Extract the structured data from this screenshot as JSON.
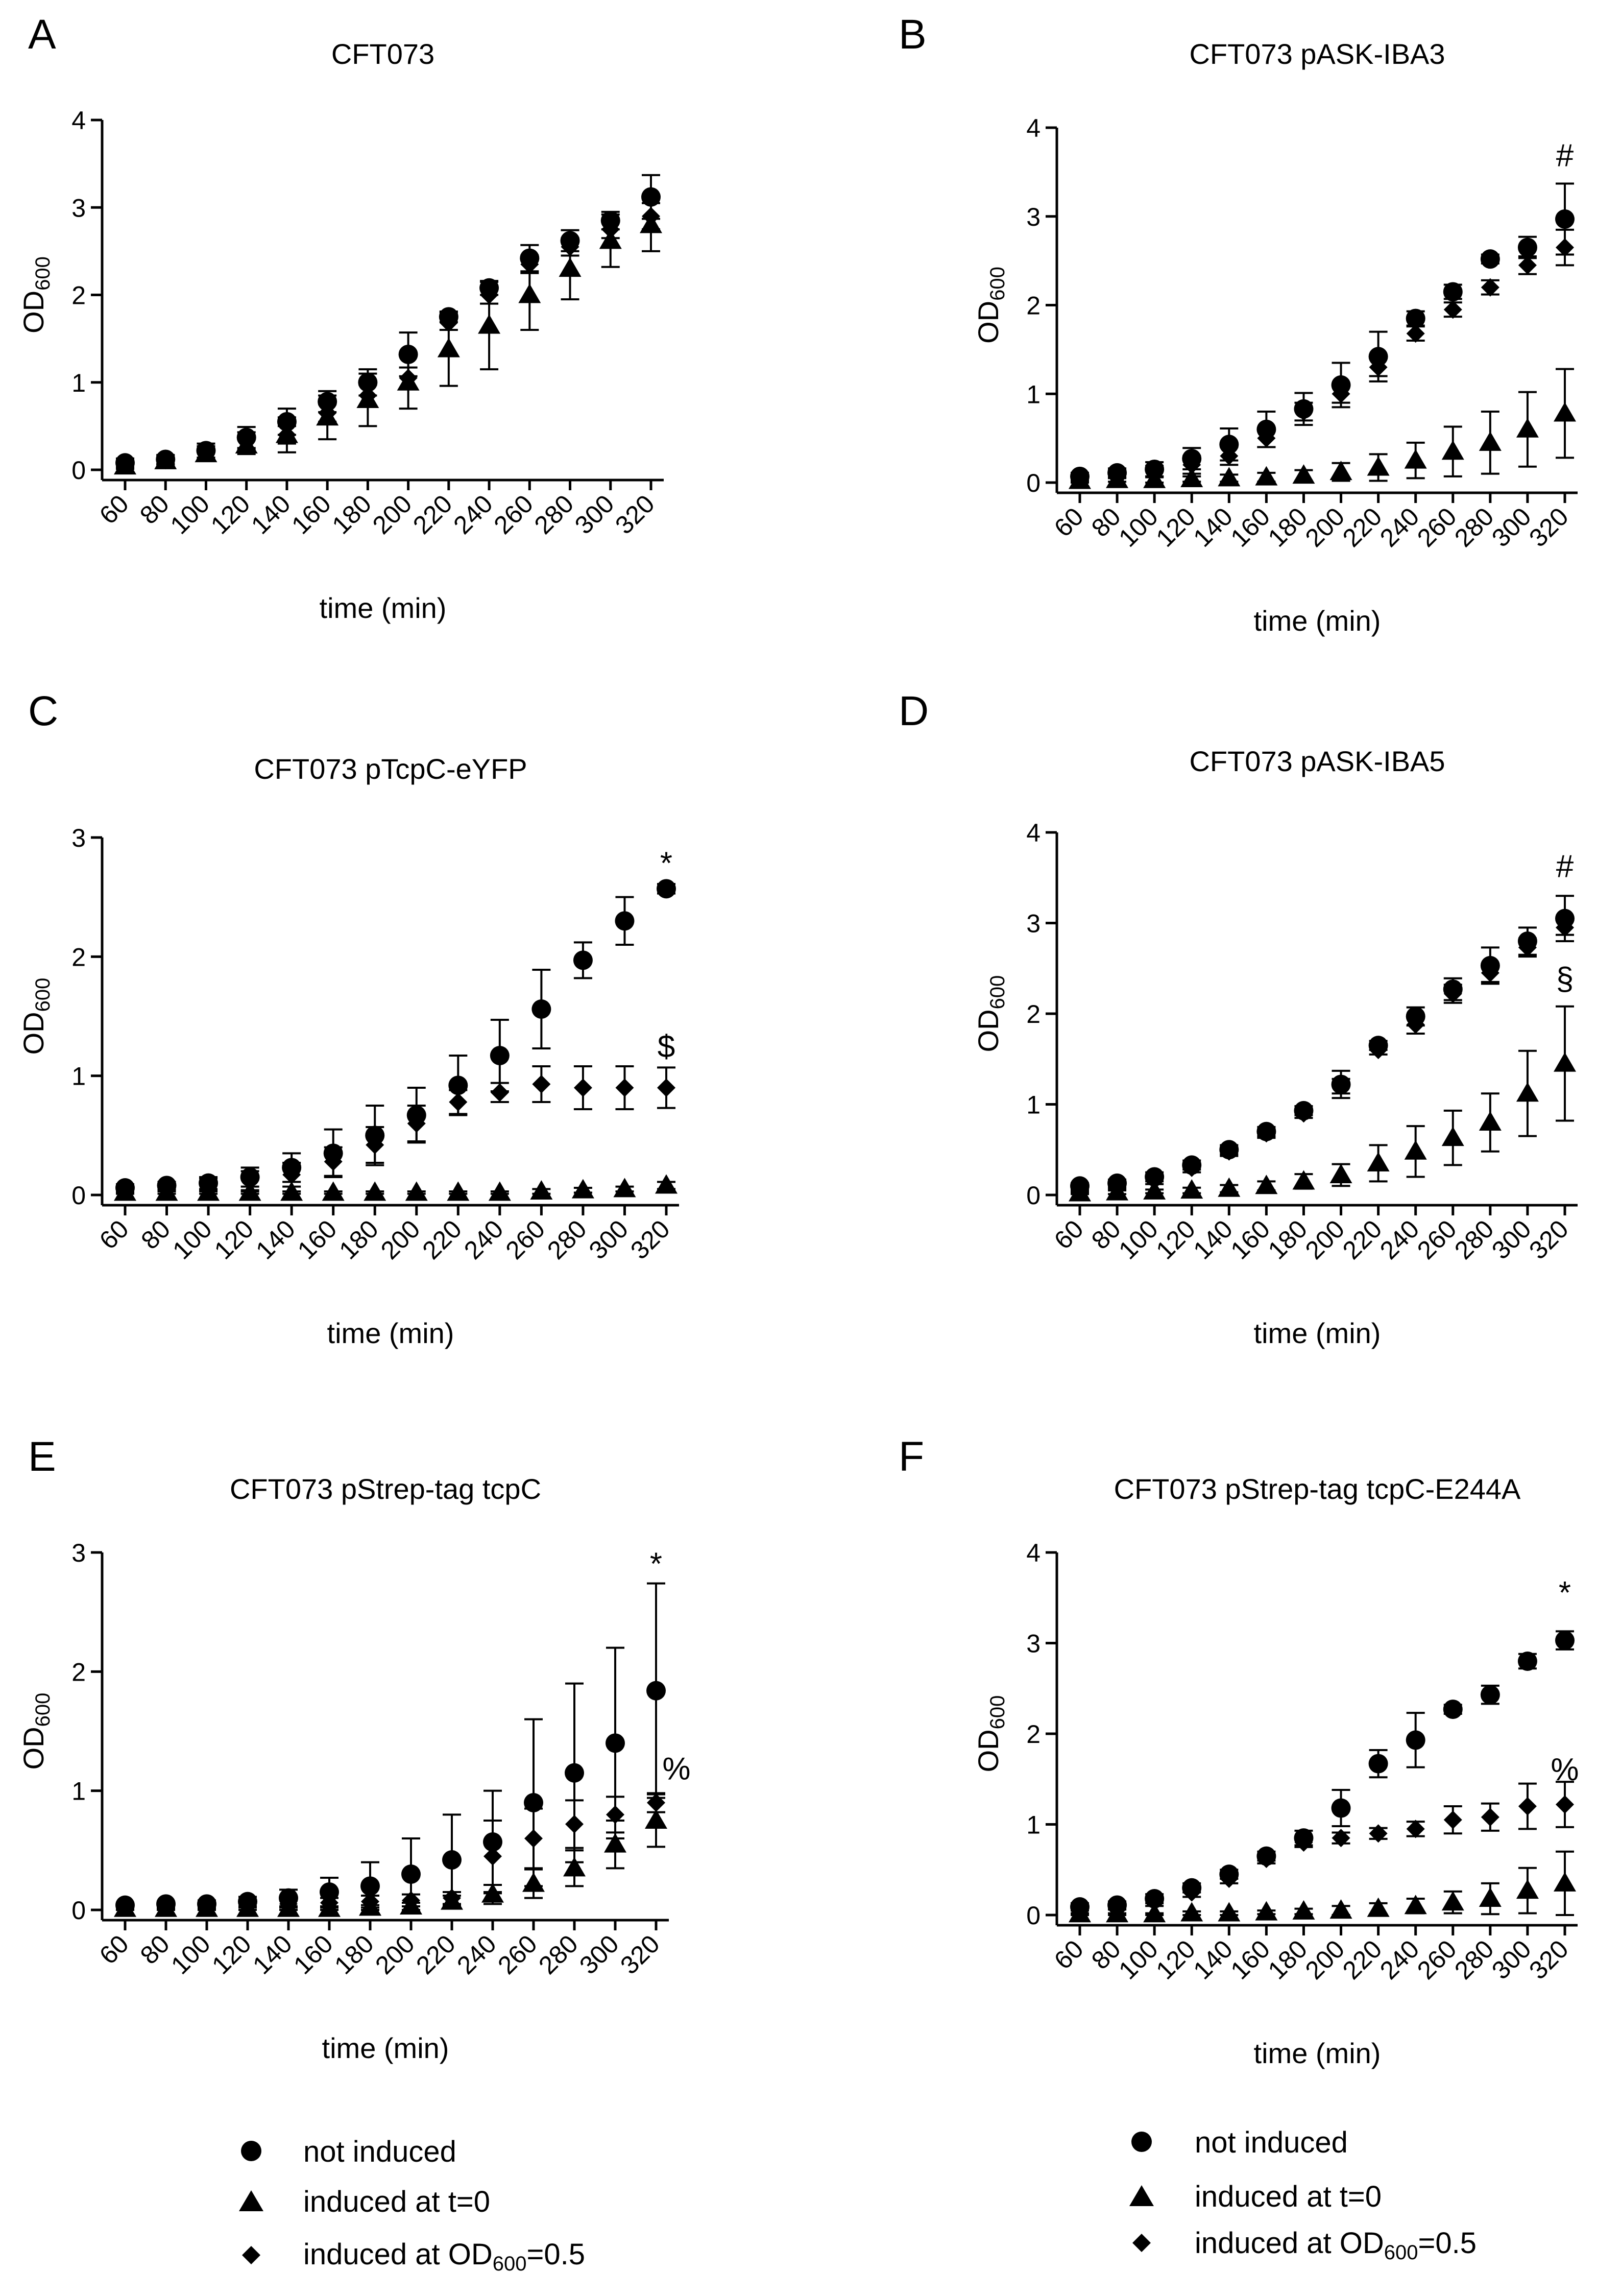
{
  "chart_data": [
    {
      "panel": "A",
      "type": "scatter",
      "title": "CFT073",
      "xlabel": "time (min)",
      "ylabel": "OD",
      "ylabel_sub": "600",
      "x": [
        60,
        80,
        100,
        120,
        140,
        160,
        180,
        200,
        220,
        240,
        260,
        280,
        300,
        320
      ],
      "ylim": [
        0,
        4
      ],
      "yticks": [
        0,
        1,
        2,
        3,
        4
      ],
      "series": [
        {
          "name": "not induced",
          "marker": "circle",
          "values": [
            0.08,
            0.12,
            0.22,
            0.37,
            0.55,
            0.78,
            1.0,
            1.32,
            1.75,
            2.08,
            2.42,
            2.62,
            2.85,
            3.12
          ],
          "errors": [
            0.05,
            0.05,
            0.08,
            0.12,
            0.15,
            0.12,
            0.15,
            0.25,
            0.06,
            0.08,
            0.15,
            0.12,
            0.1,
            0.25
          ]
        },
        {
          "name": "induced at t=0",
          "marker": "triangle",
          "values": [
            0.04,
            0.1,
            0.18,
            0.28,
            0.4,
            0.6,
            0.8,
            1.0,
            1.38,
            1.65,
            2.0,
            2.3,
            2.62,
            2.8
          ],
          "errors": [
            0.03,
            0.04,
            0.06,
            0.1,
            0.2,
            0.25,
            0.3,
            0.3,
            0.42,
            0.5,
            0.4,
            0.35,
            0.3,
            0.3
          ]
        },
        {
          "name": "induced at OD600=0.5",
          "marker": "diamond",
          "values": [
            0.07,
            0.11,
            0.2,
            0.33,
            0.4,
            0.65,
            0.85,
            1.05,
            1.68,
            2.0,
            2.35,
            2.55,
            2.75,
            2.9
          ],
          "errors": [
            0.04,
            0.05,
            0.07,
            0.1,
            0.1,
            0.1,
            0.12,
            0.12,
            0.08,
            0.1,
            0.1,
            0.1,
            0.1,
            0.15
          ]
        }
      ],
      "annotations": []
    },
    {
      "panel": "B",
      "type": "scatter",
      "title": "CFT073 pASK-IBA3",
      "xlabel": "time (min)",
      "ylabel": "OD",
      "ylabel_sub": "600",
      "x": [
        60,
        80,
        100,
        120,
        140,
        160,
        180,
        200,
        220,
        240,
        260,
        280,
        300,
        320
      ],
      "ylim": [
        0,
        4
      ],
      "yticks": [
        0,
        1,
        2,
        3,
        4
      ],
      "series": [
        {
          "name": "not induced",
          "marker": "circle",
          "values": [
            0.07,
            0.11,
            0.15,
            0.27,
            0.43,
            0.6,
            0.83,
            1.1,
            1.42,
            1.85,
            2.15,
            2.52,
            2.65,
            2.97
          ],
          "errors": [
            0.04,
            0.05,
            0.08,
            0.12,
            0.18,
            0.2,
            0.18,
            0.25,
            0.28,
            0.08,
            0.08,
            0.05,
            0.12,
            0.4
          ]
        },
        {
          "name": "induced at t=0",
          "marker": "triangle",
          "values": [
            0.02,
            0.03,
            0.03,
            0.04,
            0.05,
            0.06,
            0.08,
            0.12,
            0.17,
            0.25,
            0.35,
            0.45,
            0.6,
            0.78
          ],
          "errors": [
            0.02,
            0.02,
            0.03,
            0.03,
            0.04,
            0.05,
            0.06,
            0.1,
            0.15,
            0.2,
            0.28,
            0.35,
            0.42,
            0.5
          ]
        },
        {
          "name": "induced at OD600=0.5",
          "marker": "diamond",
          "values": [
            0.06,
            0.1,
            0.13,
            0.2,
            0.3,
            0.5,
            0.8,
            1.0,
            1.3,
            1.68,
            1.95,
            2.2,
            2.45,
            2.65
          ],
          "errors": [
            0.04,
            0.04,
            0.06,
            0.1,
            0.1,
            0.1,
            0.1,
            0.1,
            0.1,
            0.08,
            0.08,
            0.08,
            0.1,
            0.2
          ]
        }
      ],
      "annotations": [
        {
          "text": "#",
          "x": 320,
          "y": 3.68
        }
      ]
    },
    {
      "panel": "C",
      "type": "scatter",
      "title": "CFT073 pTcpC-eYFP",
      "xlabel": "time (min)",
      "ylabel": "OD",
      "ylabel_sub": "600",
      "x": [
        60,
        80,
        100,
        120,
        140,
        160,
        180,
        200,
        220,
        240,
        260,
        280,
        300,
        320
      ],
      "ylim": [
        0,
        3
      ],
      "yticks": [
        0,
        1,
        2,
        3
      ],
      "series": [
        {
          "name": "not induced",
          "marker": "circle",
          "values": [
            0.06,
            0.08,
            0.1,
            0.15,
            0.23,
            0.35,
            0.5,
            0.67,
            0.92,
            1.17,
            1.56,
            1.97,
            2.3,
            2.57
          ],
          "errors": [
            0.03,
            0.03,
            0.05,
            0.08,
            0.12,
            0.2,
            0.25,
            0.23,
            0.25,
            0.3,
            0.33,
            0.15,
            0.2,
            0.04
          ]
        },
        {
          "name": "induced at t=0",
          "marker": "triangle",
          "values": [
            0.02,
            0.02,
            0.02,
            0.02,
            0.02,
            0.02,
            0.02,
            0.02,
            0.02,
            0.02,
            0.03,
            0.04,
            0.05,
            0.08
          ],
          "errors": [
            0.01,
            0.01,
            0.01,
            0.01,
            0.01,
            0.01,
            0.01,
            0.01,
            0.01,
            0.01,
            0.02,
            0.02,
            0.02,
            0.03
          ]
        },
        {
          "name": "induced at OD600=0.5",
          "marker": "diamond",
          "values": [
            0.05,
            0.07,
            0.09,
            0.12,
            0.17,
            0.28,
            0.42,
            0.6,
            0.78,
            0.86,
            0.93,
            0.9,
            0.9,
            0.9
          ],
          "errors": [
            0.03,
            0.03,
            0.05,
            0.08,
            0.1,
            0.12,
            0.15,
            0.15,
            0.1,
            0.08,
            0.15,
            0.18,
            0.18,
            0.17
          ]
        }
      ],
      "annotations": [
        {
          "text": "*",
          "x": 320,
          "y": 2.78
        },
        {
          "text": "$",
          "x": 320,
          "y": 1.24
        }
      ]
    },
    {
      "panel": "D",
      "type": "scatter",
      "title": "CFT073 pASK-IBA5",
      "xlabel": "time (min)",
      "ylabel": "OD",
      "ylabel_sub": "600",
      "x": [
        60,
        80,
        100,
        120,
        140,
        160,
        180,
        200,
        220,
        240,
        260,
        280,
        300,
        320
      ],
      "ylim": [
        0,
        4
      ],
      "yticks": [
        0,
        1,
        2,
        3,
        4
      ],
      "series": [
        {
          "name": "not induced",
          "marker": "circle",
          "values": [
            0.1,
            0.13,
            0.2,
            0.33,
            0.5,
            0.7,
            0.93,
            1.22,
            1.65,
            1.97,
            2.27,
            2.53,
            2.8,
            3.05
          ],
          "errors": [
            0.03,
            0.04,
            0.05,
            0.05,
            0.05,
            0.05,
            0.05,
            0.15,
            0.05,
            0.1,
            0.12,
            0.2,
            0.15,
            0.25
          ]
        },
        {
          "name": "induced at t=0",
          "marker": "triangle",
          "values": [
            0.02,
            0.03,
            0.04,
            0.05,
            0.07,
            0.1,
            0.15,
            0.22,
            0.35,
            0.48,
            0.63,
            0.8,
            1.12,
            1.45
          ],
          "errors": [
            0.01,
            0.02,
            0.02,
            0.03,
            0.04,
            0.05,
            0.08,
            0.12,
            0.2,
            0.28,
            0.3,
            0.32,
            0.47,
            0.63
          ]
        },
        {
          "name": "induced at OD600=0.5",
          "marker": "diamond",
          "values": [
            0.08,
            0.11,
            0.17,
            0.3,
            0.48,
            0.68,
            0.9,
            1.2,
            1.6,
            1.88,
            2.22,
            2.45,
            2.73,
            2.95
          ],
          "errors": [
            0.03,
            0.04,
            0.05,
            0.05,
            0.05,
            0.05,
            0.05,
            0.08,
            0.05,
            0.1,
            0.1,
            0.1,
            0.1,
            0.08
          ]
        }
      ],
      "annotations": [
        {
          "text": "#",
          "x": 320,
          "y": 3.62
        },
        {
          "text": "§",
          "x": 320,
          "y": 2.38
        }
      ]
    },
    {
      "panel": "E",
      "type": "scatter",
      "title": "CFT073 pStrep-tag tcpC",
      "xlabel": "time (min)",
      "ylabel": "OD",
      "ylabel_sub": "600",
      "x": [
        60,
        80,
        100,
        120,
        140,
        160,
        180,
        200,
        220,
        240,
        260,
        280,
        300,
        320
      ],
      "ylim": [
        0,
        3
      ],
      "yticks": [
        0,
        1,
        2,
        3
      ],
      "series": [
        {
          "name": "not induced",
          "marker": "circle",
          "values": [
            0.04,
            0.05,
            0.05,
            0.07,
            0.1,
            0.15,
            0.2,
            0.3,
            0.42,
            0.57,
            0.9,
            1.15,
            1.4,
            1.84
          ],
          "errors": [
            0.02,
            0.02,
            0.03,
            0.04,
            0.07,
            0.12,
            0.2,
            0.3,
            0.38,
            0.43,
            0.7,
            0.75,
            0.8,
            0.9
          ]
        },
        {
          "name": "induced at t=0",
          "marker": "triangle",
          "values": [
            0.01,
            0.01,
            0.01,
            0.01,
            0.01,
            0.01,
            0.02,
            0.03,
            0.07,
            0.13,
            0.22,
            0.35,
            0.55,
            0.75
          ],
          "errors": [
            0.01,
            0.01,
            0.01,
            0.01,
            0.01,
            0.01,
            0.02,
            0.03,
            0.05,
            0.08,
            0.12,
            0.15,
            0.2,
            0.22
          ]
        },
        {
          "name": "induced at OD600=0.5",
          "marker": "diamond",
          "values": [
            0.03,
            0.03,
            0.04,
            0.05,
            0.05,
            0.06,
            0.07,
            0.08,
            0.1,
            0.45,
            0.6,
            0.72,
            0.8,
            0.9
          ],
          "errors": [
            0.02,
            0.02,
            0.03,
            0.03,
            0.03,
            0.04,
            0.05,
            0.05,
            0.05,
            0.3,
            0.25,
            0.2,
            0.15,
            0.08
          ]
        }
      ],
      "annotations": [
        {
          "text": "*",
          "x": 320,
          "y": 2.9
        },
        {
          "text": "%",
          "x": 320,
          "y": 1.18
        }
      ]
    },
    {
      "panel": "F",
      "type": "scatter",
      "title": "CFT073 pStrep-tag tcpC-E244A",
      "xlabel": "time (min)",
      "ylabel": "OD",
      "ylabel_sub": "600",
      "x": [
        60,
        80,
        100,
        120,
        140,
        160,
        180,
        200,
        220,
        240,
        260,
        280,
        300,
        320
      ],
      "ylim": [
        0,
        4
      ],
      "yticks": [
        0,
        1,
        2,
        3,
        4
      ],
      "series": [
        {
          "name": "not induced",
          "marker": "circle",
          "values": [
            0.09,
            0.11,
            0.18,
            0.3,
            0.45,
            0.65,
            0.85,
            1.18,
            1.67,
            1.93,
            2.27,
            2.43,
            2.8,
            3.03
          ],
          "errors": [
            0.04,
            0.04,
            0.05,
            0.05,
            0.05,
            0.05,
            0.08,
            0.2,
            0.15,
            0.3,
            0.05,
            0.1,
            0.08,
            0.1
          ]
        },
        {
          "name": "induced at t=0",
          "marker": "triangle",
          "values": [
            0.01,
            0.01,
            0.01,
            0.02,
            0.02,
            0.03,
            0.04,
            0.05,
            0.07,
            0.1,
            0.14,
            0.18,
            0.27,
            0.35
          ],
          "errors": [
            0.01,
            0.01,
            0.01,
            0.02,
            0.02,
            0.02,
            0.03,
            0.05,
            0.06,
            0.08,
            0.12,
            0.17,
            0.25,
            0.35
          ]
        },
        {
          "name": "induced at OD600=0.5",
          "marker": "diamond",
          "values": [
            0.08,
            0.1,
            0.15,
            0.25,
            0.4,
            0.62,
            0.8,
            0.85,
            0.9,
            0.95,
            1.05,
            1.08,
            1.2,
            1.22
          ],
          "errors": [
            0.03,
            0.04,
            0.05,
            0.05,
            0.05,
            0.05,
            0.05,
            0.06,
            0.06,
            0.08,
            0.15,
            0.15,
            0.25,
            0.25
          ]
        }
      ],
      "annotations": [
        {
          "text": "*",
          "x": 320,
          "y": 3.55
        },
        {
          "text": "%",
          "x": 320,
          "y": 1.6
        }
      ]
    }
  ],
  "legend": {
    "not_induced": "not induced",
    "induced_t0": "induced at t=0",
    "induced_od_prefix": "induced at OD",
    "induced_od_sub": "600",
    "induced_od_suffix": "=0.5"
  }
}
